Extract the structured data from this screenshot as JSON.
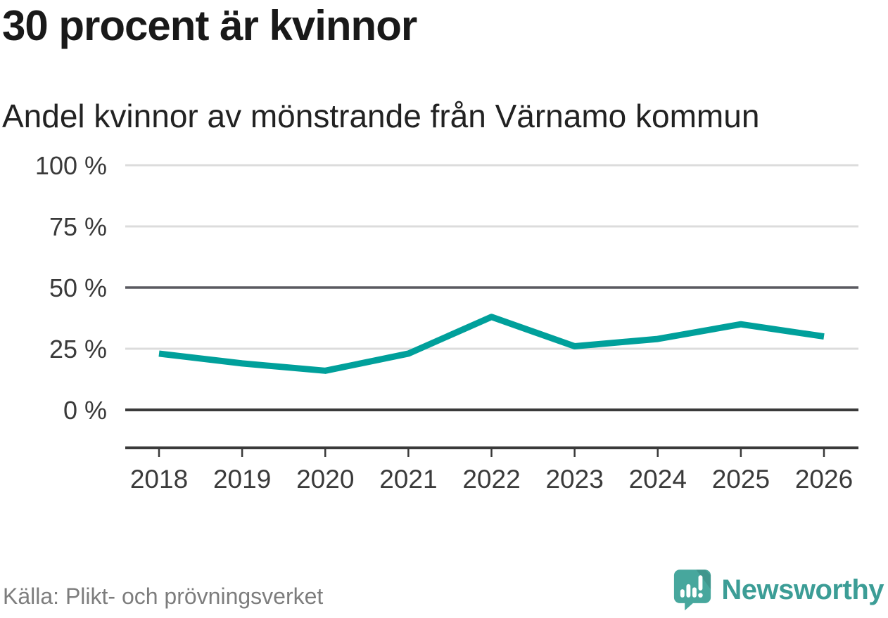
{
  "title": "30 procent är kvinnor",
  "subtitle": "Andel kvinnor av mönstrande från Värnamo kommun",
  "source": "Källa: Plikt- och prövningsverket",
  "branding": {
    "name": "Newsworthy",
    "icon": "bar-chart-speech-bubble-icon",
    "icon_color": "#47a79d",
    "text_color": "#3c9d96"
  },
  "colors": {
    "line": "#00a09b",
    "axis": "#3a3a3a",
    "grid_light": "#dcdcdc",
    "grid_strong": "#5a5a60",
    "text": "#3a3a3a",
    "title_text": "#191919",
    "source_text": "#7d7d7d"
  },
  "chart_data": {
    "type": "line",
    "title": "30 procent är kvinnor",
    "subtitle": "Andel kvinnor av mönstrande från Värnamo kommun",
    "unit": "%",
    "xlabel": "",
    "ylabel": "",
    "ylim": [
      0,
      100
    ],
    "grid": "horizontal",
    "legend": "none",
    "categories": [
      2018,
      2019,
      2020,
      2021,
      2022,
      2023,
      2024,
      2025,
      2026
    ],
    "series": [
      {
        "name": "Andel kvinnor av mönstrande",
        "values": [
          23,
          19,
          16,
          23,
          38,
          26,
          29,
          35,
          30
        ]
      }
    ],
    "y_ticks": [
      {
        "value": 0,
        "label": "0 %",
        "style": "axis"
      },
      {
        "value": 25,
        "label": "25 %",
        "style": "light"
      },
      {
        "value": 50,
        "label": "50 %",
        "style": "strong"
      },
      {
        "value": 75,
        "label": "75 %",
        "style": "light"
      },
      {
        "value": 100,
        "label": "100 %",
        "style": "light"
      }
    ]
  }
}
